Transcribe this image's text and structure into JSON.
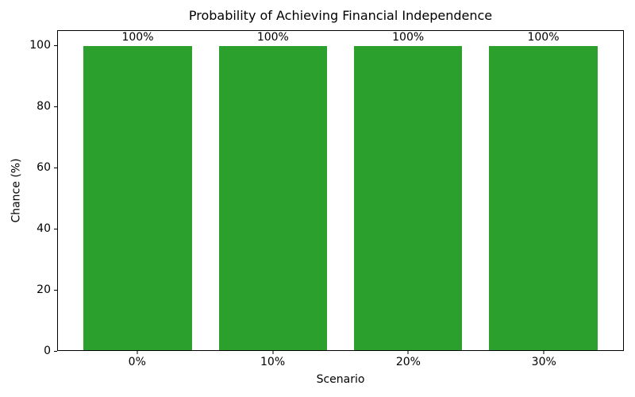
{
  "chart_data": {
    "type": "bar",
    "title": "Probability of Achieving Financial Independence",
    "xlabel": "Scenario",
    "ylabel": "Chance (%)",
    "categories": [
      "0%",
      "10%",
      "20%",
      "30%"
    ],
    "values": [
      100,
      100,
      100,
      100
    ],
    "bar_labels": [
      "100%",
      "100%",
      "100%",
      "100%"
    ],
    "bar_color": "#2ca02c",
    "text_color": "#000000",
    "background_color": "#ffffff",
    "ylim": [
      0,
      105
    ],
    "yticks": [
      0,
      20,
      40,
      60,
      80,
      100
    ],
    "xlim": [
      -0.59,
      3.59
    ],
    "bar_width_units": 0.8,
    "grid": false,
    "legend": "none"
  }
}
